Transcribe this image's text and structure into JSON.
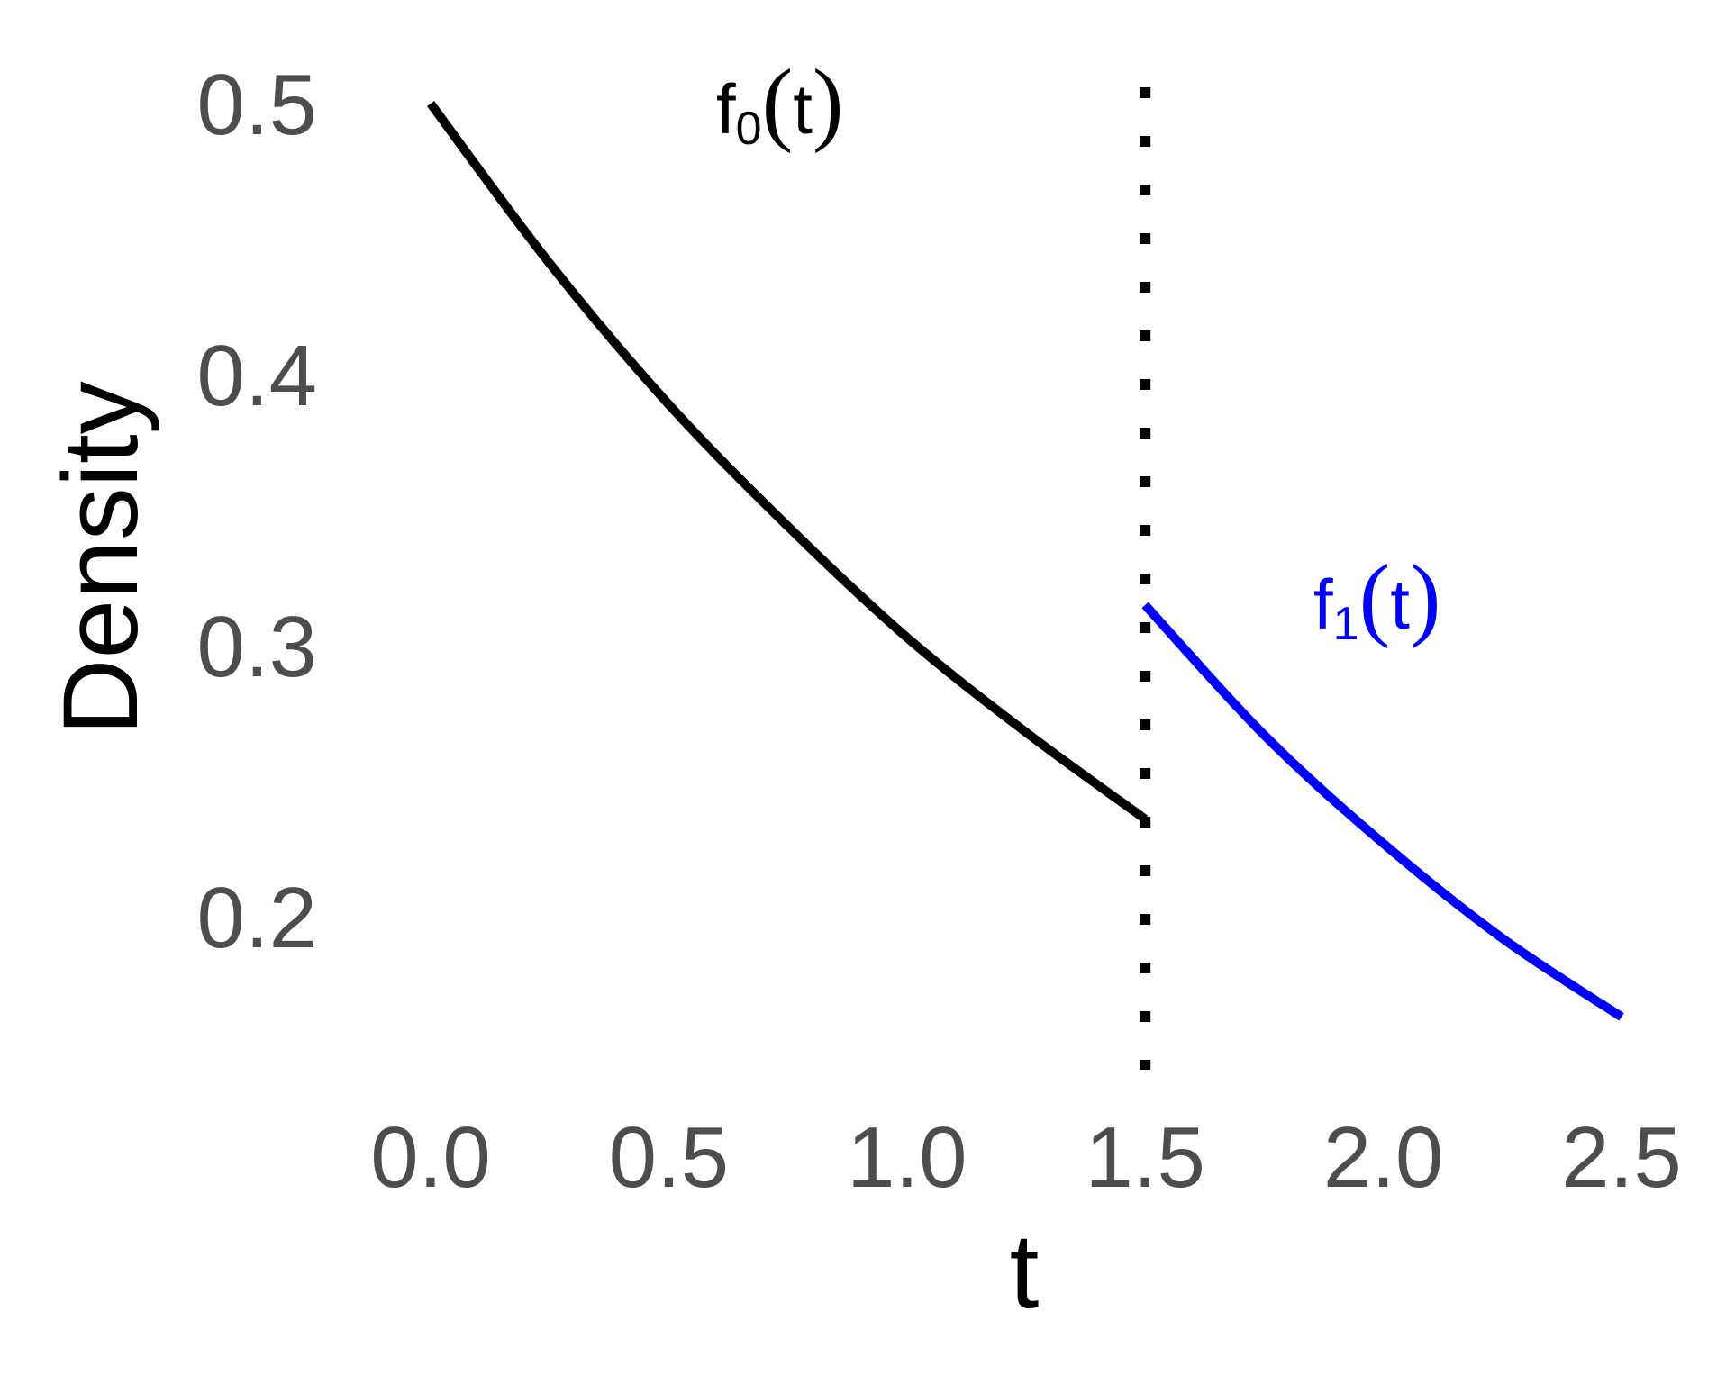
{
  "chart_data": {
    "type": "line",
    "title": "",
    "xlabel": "t",
    "ylabel": "Density",
    "xlim": [
      0.0,
      2.5
    ],
    "ylim": [
      0.14,
      0.5
    ],
    "xticks": [
      "0.0",
      "0.5",
      "1.0",
      "1.5",
      "2.0",
      "2.5"
    ],
    "yticks": [
      "0.2",
      "0.3",
      "0.4",
      "0.5"
    ],
    "grid": false,
    "legend": "none",
    "series": [
      {
        "label_base": "f",
        "label_sub": "0",
        "label_open": "(",
        "label_arg": "t",
        "label_close": ")",
        "color": "#000000",
        "x": [
          0.0,
          0.25,
          0.5,
          0.75,
          1.0,
          1.25,
          1.5
        ],
        "y": [
          0.5,
          0.441,
          0.389,
          0.344,
          0.303,
          0.268,
          0.236
        ]
      },
      {
        "label_base": "f",
        "label_sub": "1",
        "label_open": "(",
        "label_arg": "t",
        "label_close": ")",
        "color": "#0000ff",
        "x": [
          1.5,
          1.75,
          2.0,
          2.25,
          2.5
        ],
        "y": [
          0.315,
          0.267,
          0.227,
          0.192,
          0.163
        ]
      }
    ],
    "vline": {
      "x": 1.5,
      "style": "dotted",
      "color": "#000000"
    }
  }
}
